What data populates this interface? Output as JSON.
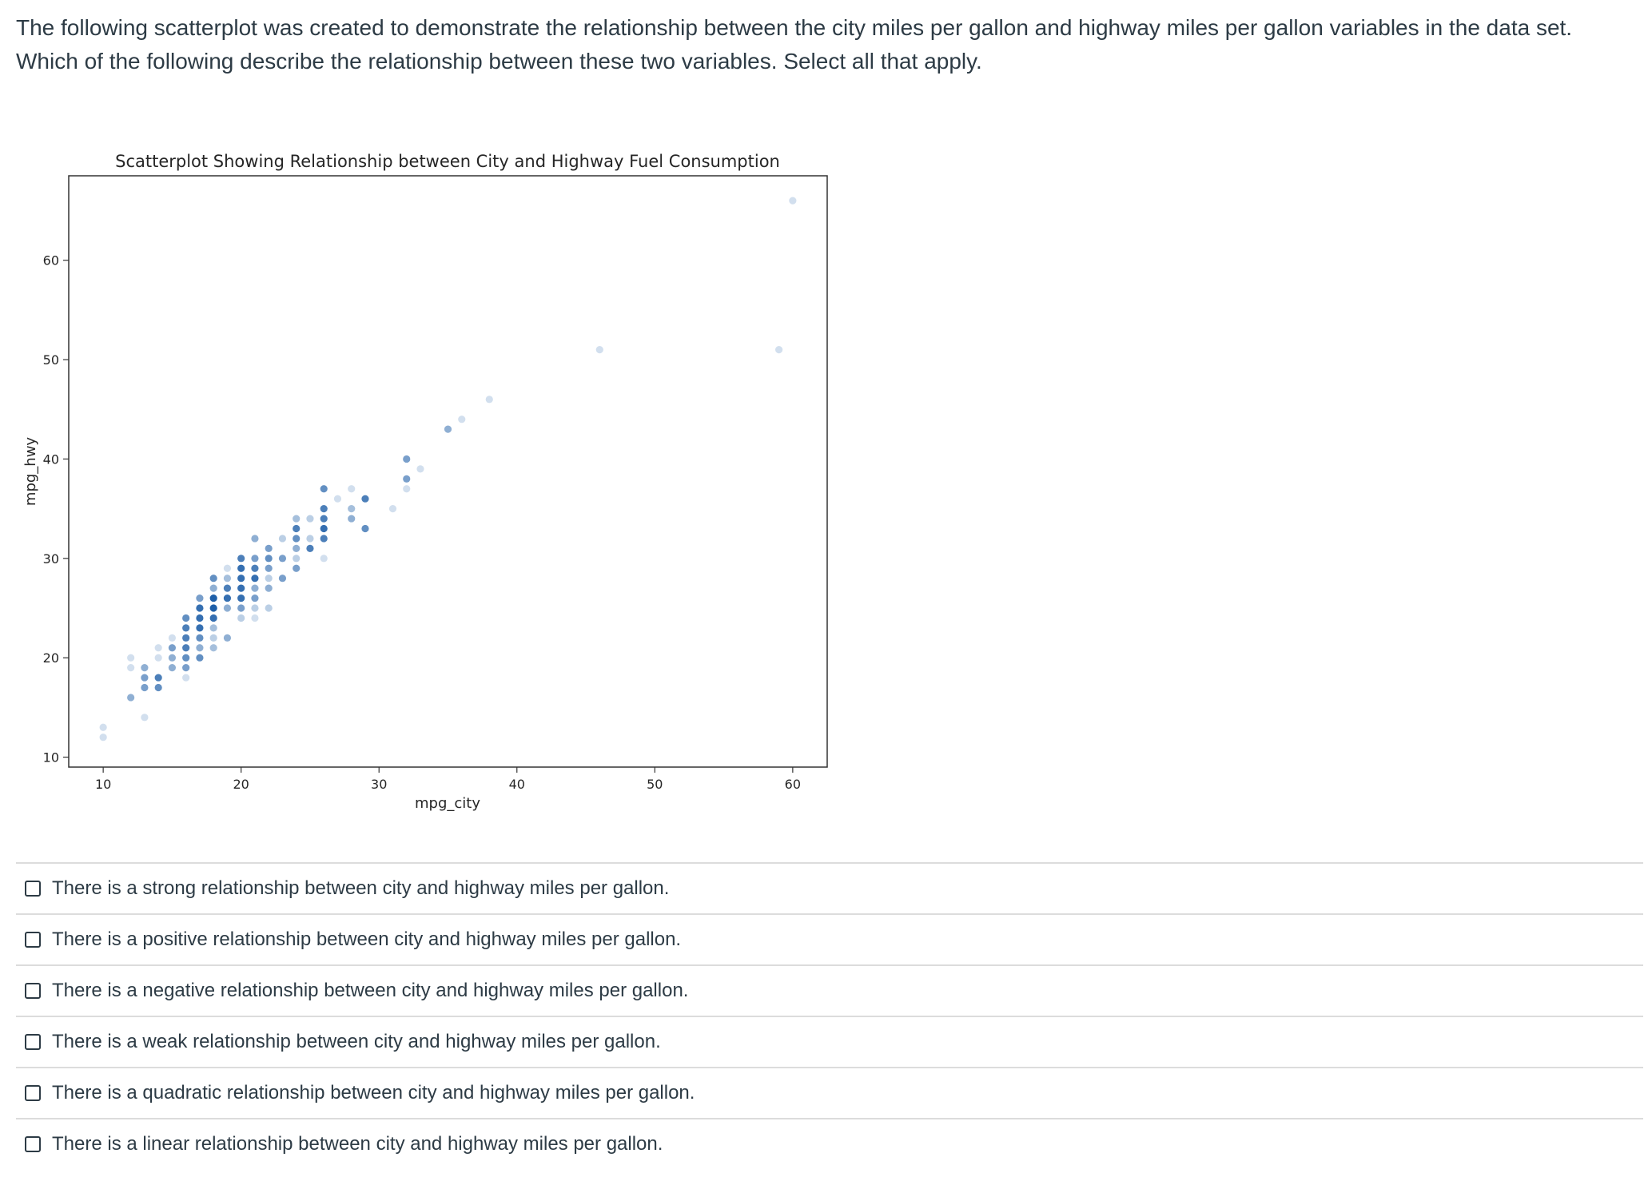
{
  "question": {
    "text": "The following scatterplot was created to demonstrate the relationship between the city miles per gallon and highway miles per gallon variables in the data set.  Which of the following describe the relationship between these two variables.  Select all that apply."
  },
  "answers": [
    {
      "label": "There is a strong relationship between city and highway miles per gallon.",
      "checked": false
    },
    {
      "label": "There is a positive relationship between city and highway miles per gallon.",
      "checked": false
    },
    {
      "label": "There is a negative relationship between city and highway miles per gallon.",
      "checked": false
    },
    {
      "label": "There is a weak relationship between city and highway miles per gallon.",
      "checked": false
    },
    {
      "label": "There is a quadratic relationship between city and highway miles per gallon.",
      "checked": false
    },
    {
      "label": "There is a linear relationship between city and highway miles per gallon.",
      "checked": false
    }
  ],
  "chart_data": {
    "type": "scatter",
    "title": "Scatterplot Showing Relationship between City and Highway Fuel Consumption",
    "xlabel": "mpg_city",
    "ylabel": "mpg_hwy",
    "xlim": [
      7.5,
      62.5
    ],
    "ylim": [
      9,
      68.5
    ],
    "xticks": [
      10,
      20,
      30,
      40,
      50,
      60
    ],
    "yticks": [
      10,
      20,
      30,
      40,
      50,
      60
    ],
    "grid": false,
    "marker_color": "#1f5fa8",
    "points": [
      [
        10,
        13
      ],
      [
        10,
        12
      ],
      [
        12,
        20
      ],
      [
        12,
        19
      ],
      [
        12,
        16
      ],
      [
        13,
        19
      ],
      [
        13,
        18
      ],
      [
        13,
        17
      ],
      [
        13,
        14
      ],
      [
        14,
        21
      ],
      [
        14,
        20
      ],
      [
        14,
        18
      ],
      [
        14,
        17
      ],
      [
        15,
        22
      ],
      [
        15,
        21
      ],
      [
        15,
        20
      ],
      [
        15,
        19
      ],
      [
        16,
        24
      ],
      [
        16,
        23
      ],
      [
        16,
        22
      ],
      [
        16,
        21
      ],
      [
        16,
        20
      ],
      [
        16,
        19
      ],
      [
        16,
        18
      ],
      [
        17,
        26
      ],
      [
        17,
        25
      ],
      [
        17,
        24
      ],
      [
        17,
        23
      ],
      [
        17,
        22
      ],
      [
        17,
        21
      ],
      [
        17,
        20
      ],
      [
        18,
        28
      ],
      [
        18,
        27
      ],
      [
        18,
        26
      ],
      [
        18,
        25
      ],
      [
        18,
        24
      ],
      [
        18,
        23
      ],
      [
        18,
        22
      ],
      [
        18,
        21
      ],
      [
        19,
        29
      ],
      [
        19,
        28
      ],
      [
        19,
        27
      ],
      [
        19,
        26
      ],
      [
        19,
        25
      ],
      [
        19,
        22
      ],
      [
        20,
        30
      ],
      [
        20,
        29
      ],
      [
        20,
        28
      ],
      [
        20,
        27
      ],
      [
        20,
        26
      ],
      [
        20,
        25
      ],
      [
        20,
        24
      ],
      [
        21,
        32
      ],
      [
        21,
        30
      ],
      [
        21,
        29
      ],
      [
        21,
        28
      ],
      [
        21,
        27
      ],
      [
        21,
        26
      ],
      [
        21,
        25
      ],
      [
        21,
        24
      ],
      [
        22,
        31
      ],
      [
        22,
        30
      ],
      [
        22,
        29
      ],
      [
        22,
        28
      ],
      [
        22,
        27
      ],
      [
        22,
        25
      ],
      [
        23,
        32
      ],
      [
        23,
        30
      ],
      [
        23,
        28
      ],
      [
        24,
        34
      ],
      [
        24,
        33
      ],
      [
        24,
        32
      ],
      [
        24,
        31
      ],
      [
        24,
        30
      ],
      [
        24,
        29
      ],
      [
        25,
        34
      ],
      [
        25,
        32
      ],
      [
        25,
        31
      ],
      [
        26,
        37
      ],
      [
        26,
        35
      ],
      [
        26,
        34
      ],
      [
        26,
        33
      ],
      [
        26,
        32
      ],
      [
        26,
        30
      ],
      [
        27,
        36
      ],
      [
        28,
        37
      ],
      [
        28,
        35
      ],
      [
        28,
        34
      ],
      [
        29,
        36
      ],
      [
        29,
        33
      ],
      [
        31,
        35
      ],
      [
        32,
        40
      ],
      [
        32,
        38
      ],
      [
        32,
        37
      ],
      [
        33,
        39
      ],
      [
        35,
        43
      ],
      [
        36,
        44
      ],
      [
        38,
        46
      ],
      [
        46,
        51
      ],
      [
        59,
        51
      ],
      [
        60,
        66
      ]
    ],
    "point_alpha": [
      0.2,
      0.2,
      0.2,
      0.2,
      0.5,
      0.5,
      0.6,
      0.6,
      0.2,
      0.2,
      0.2,
      0.8,
      0.7,
      0.2,
      0.6,
      0.5,
      0.5,
      0.7,
      0.8,
      0.8,
      0.8,
      0.7,
      0.6,
      0.2,
      0.6,
      0.9,
      0.9,
      0.9,
      0.7,
      0.5,
      0.7,
      0.7,
      0.5,
      1.0,
      1.0,
      0.9,
      0.4,
      0.3,
      0.4,
      0.2,
      0.4,
      0.8,
      0.9,
      0.5,
      0.5,
      0.8,
      0.9,
      0.9,
      0.9,
      0.9,
      0.6,
      0.3,
      0.5,
      0.6,
      0.8,
      0.9,
      0.5,
      0.6,
      0.3,
      0.2,
      0.6,
      0.7,
      0.6,
      0.3,
      0.5,
      0.3,
      0.3,
      0.6,
      0.6,
      0.4,
      0.8,
      0.7,
      0.5,
      0.3,
      0.6,
      0.3,
      0.3,
      0.8,
      0.7,
      0.8,
      0.8,
      0.9,
      0.8,
      0.2,
      0.2,
      0.2,
      0.4,
      0.5,
      0.8,
      0.7,
      0.2,
      0.6,
      0.6,
      0.2,
      0.2,
      0.5,
      0.2,
      0.2,
      0.2,
      0.2,
      0.2
    ]
  }
}
